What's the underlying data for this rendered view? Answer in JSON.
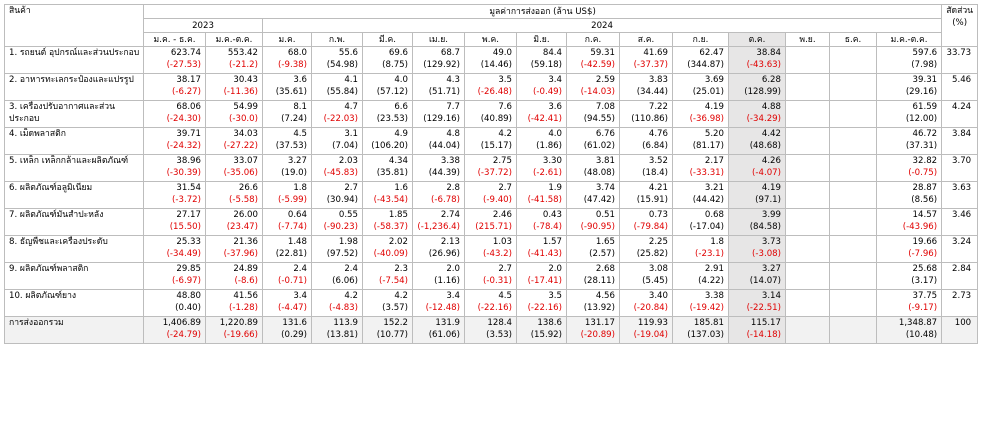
{
  "header": {
    "product": "สินค้า",
    "value_title": "มูลค่าการส่งออก (ล้าน US$)",
    "share_title": "สัดส่วน",
    "share_unit": "(%)",
    "year_2023": "2023",
    "year_2024": "2024",
    "cols_2023": [
      "ม.ค. - ธ.ค.",
      "ม.ค.-ต.ค."
    ],
    "cols_2024": [
      "ม.ค.",
      "ก.พ.",
      "มี.ค.",
      "เม.ย.",
      "พ.ค.",
      "มิ.ย.",
      "ก.ค.",
      "ส.ค.",
      "ก.ย.",
      "ต.ค.",
      "พ.ย.",
      "ธ.ค.",
      "ม.ค.-ต.ค."
    ]
  },
  "rows": [
    {
      "name": "1. รถยนต์ อุปกรณ์และส่วนประกอบ",
      "share": "33.73",
      "cells": [
        {
          "v": "623.74",
          "g": "(-27.53)",
          "neg": true
        },
        {
          "v": "553.42",
          "g": "(-21.2)",
          "neg": true
        },
        {
          "v": "68.0",
          "g": "(-9.38)",
          "neg": true
        },
        {
          "v": "55.6",
          "g": "(54.98)",
          "neg": false
        },
        {
          "v": "69.6",
          "g": "(8.75)",
          "neg": false
        },
        {
          "v": "68.7",
          "g": "(129.92)",
          "neg": false
        },
        {
          "v": "49.0",
          "g": "(14.46)",
          "neg": false
        },
        {
          "v": "84.4",
          "g": "(59.18)",
          "neg": false
        },
        {
          "v": "59.31",
          "g": "(-42.59)",
          "neg": true
        },
        {
          "v": "41.69",
          "g": "(-37.37)",
          "neg": true
        },
        {
          "v": "62.47",
          "g": "(344.87)",
          "neg": false
        },
        {
          "v": "38.84",
          "g": "(-43.63)",
          "neg": true
        },
        {
          "v": "",
          "g": "",
          "neg": false
        },
        {
          "v": "",
          "g": "",
          "neg": false
        },
        {
          "v": "597.6",
          "g": "(7.98)",
          "neg": false
        }
      ]
    },
    {
      "name": "2. อาหารทะเลกระป๋องและแปรรูป",
      "share": "5.46",
      "cells": [
        {
          "v": "38.17",
          "g": "(-6.27)",
          "neg": true
        },
        {
          "v": "30.43",
          "g": "(-11.36)",
          "neg": true
        },
        {
          "v": "3.6",
          "g": "(35.61)",
          "neg": false
        },
        {
          "v": "4.1",
          "g": "(55.84)",
          "neg": false
        },
        {
          "v": "4.0",
          "g": "(57.12)",
          "neg": false
        },
        {
          "v": "4.3",
          "g": "(51.71)",
          "neg": false
        },
        {
          "v": "3.5",
          "g": "(-26.48)",
          "neg": true
        },
        {
          "v": "3.4",
          "g": "(-0.49)",
          "neg": true
        },
        {
          "v": "2.59",
          "g": "(-14.03)",
          "neg": true
        },
        {
          "v": "3.83",
          "g": "(34.44)",
          "neg": false
        },
        {
          "v": "3.69",
          "g": "(25.01)",
          "neg": false
        },
        {
          "v": "6.28",
          "g": "(128.99)",
          "neg": false
        },
        {
          "v": "",
          "g": "",
          "neg": false
        },
        {
          "v": "",
          "g": "",
          "neg": false
        },
        {
          "v": "39.31",
          "g": "(29.16)",
          "neg": false
        }
      ]
    },
    {
      "name": "3. เครื่องปรับอากาศและส่วนประกอบ",
      "share": "4.24",
      "cells": [
        {
          "v": "68.06",
          "g": "(-24.30)",
          "neg": true
        },
        {
          "v": "54.99",
          "g": "(-30.0)",
          "neg": true
        },
        {
          "v": "8.1",
          "g": "(7.24)",
          "neg": false
        },
        {
          "v": "4.7",
          "g": "(-22.03)",
          "neg": true
        },
        {
          "v": "6.6",
          "g": "(23.53)",
          "neg": false
        },
        {
          "v": "7.7",
          "g": "(129.16)",
          "neg": false
        },
        {
          "v": "7.6",
          "g": "(40.89)",
          "neg": false
        },
        {
          "v": "3.6",
          "g": "(-42.41)",
          "neg": true
        },
        {
          "v": "7.08",
          "g": "(94.55)",
          "neg": false
        },
        {
          "v": "7.22",
          "g": "(110.86)",
          "neg": false
        },
        {
          "v": "4.19",
          "g": "(-36.98)",
          "neg": true
        },
        {
          "v": "4.88",
          "g": "(-34.29)",
          "neg": true
        },
        {
          "v": "",
          "g": "",
          "neg": false
        },
        {
          "v": "",
          "g": "",
          "neg": false
        },
        {
          "v": "61.59",
          "g": "(12.00)",
          "neg": false
        }
      ]
    },
    {
      "name": "4. เม็ดพลาสติก",
      "share": "3.84",
      "cells": [
        {
          "v": "39.71",
          "g": "(-24.32)",
          "neg": true
        },
        {
          "v": "34.03",
          "g": "(-27.22)",
          "neg": true
        },
        {
          "v": "4.5",
          "g": "(37.53)",
          "neg": false
        },
        {
          "v": "3.1",
          "g": "(7.04)",
          "neg": false
        },
        {
          "v": "4.9",
          "g": "(106.20)",
          "neg": false
        },
        {
          "v": "4.8",
          "g": "(44.04)",
          "neg": false
        },
        {
          "v": "4.2",
          "g": "(15.17)",
          "neg": false
        },
        {
          "v": "4.0",
          "g": "(1.86)",
          "neg": false
        },
        {
          "v": "6.76",
          "g": "(61.02)",
          "neg": false
        },
        {
          "v": "4.76",
          "g": "(6.84)",
          "neg": false
        },
        {
          "v": "5.20",
          "g": "(81.17)",
          "neg": false
        },
        {
          "v": "4.42",
          "g": "(48.68)",
          "neg": false
        },
        {
          "v": "",
          "g": "",
          "neg": false
        },
        {
          "v": "",
          "g": "",
          "neg": false
        },
        {
          "v": "46.72",
          "g": "(37.31)",
          "neg": false
        }
      ]
    },
    {
      "name": "5. เหล็ก เหล็กกล้าและผลิตภัณฑ์",
      "share": "3.70",
      "cells": [
        {
          "v": "38.96",
          "g": "(-30.39)",
          "neg": true
        },
        {
          "v": "33.07",
          "g": "(-35.06)",
          "neg": true
        },
        {
          "v": "3.27",
          "g": "(19.0)",
          "neg": false
        },
        {
          "v": "2.03",
          "g": "(-45.83)",
          "neg": true
        },
        {
          "v": "4.34",
          "g": "(35.81)",
          "neg": false
        },
        {
          "v": "3.38",
          "g": "(44.39)",
          "neg": false
        },
        {
          "v": "2.75",
          "g": "(-37.72)",
          "neg": true
        },
        {
          "v": "3.30",
          "g": "(-2.61)",
          "neg": true
        },
        {
          "v": "3.81",
          "g": "(48.08)",
          "neg": false
        },
        {
          "v": "3.52",
          "g": "(18.4)",
          "neg": false
        },
        {
          "v": "2.17",
          "g": "(-33.31)",
          "neg": true
        },
        {
          "v": "4.26",
          "g": "(-4.07)",
          "neg": true
        },
        {
          "v": "",
          "g": "",
          "neg": false
        },
        {
          "v": "",
          "g": "",
          "neg": false
        },
        {
          "v": "32.82",
          "g": "(-0.75)",
          "neg": true
        }
      ]
    },
    {
      "name": "6. ผลิตภัณฑ์อลูมิเนียม",
      "share": "3.63",
      "cells": [
        {
          "v": "31.54",
          "g": "(-3.72)",
          "neg": true
        },
        {
          "v": "26.6",
          "g": "(-5.58)",
          "neg": true
        },
        {
          "v": "1.8",
          "g": "(-5.99)",
          "neg": true
        },
        {
          "v": "2.7",
          "g": "(30.94)",
          "neg": false
        },
        {
          "v": "1.6",
          "g": "(-43.54)",
          "neg": true
        },
        {
          "v": "2.8",
          "g": "(-6.78)",
          "neg": true
        },
        {
          "v": "2.7",
          "g": "(-9.40)",
          "neg": true
        },
        {
          "v": "1.9",
          "g": "(-41.58)",
          "neg": true
        },
        {
          "v": "3.74",
          "g": "(47.42)",
          "neg": false
        },
        {
          "v": "4.21",
          "g": "(15.91)",
          "neg": false
        },
        {
          "v": "3.21",
          "g": "(44.42)",
          "neg": false
        },
        {
          "v": "4.19",
          "g": "(97.1)",
          "neg": false
        },
        {
          "v": "",
          "g": "",
          "neg": false
        },
        {
          "v": "",
          "g": "",
          "neg": false
        },
        {
          "v": "28.87",
          "g": "(8.56)",
          "neg": false
        }
      ]
    },
    {
      "name": "7. ผลิตภัณฑ์มันสำปะหลัง",
      "share": "3.46",
      "cells": [
        {
          "v": "27.17",
          "g": "(15.50)",
          "neg": true
        },
        {
          "v": "26.00",
          "g": "(23.47)",
          "neg": true
        },
        {
          "v": "0.64",
          "g": "(-7.74)",
          "neg": true
        },
        {
          "v": "0.55",
          "g": "(-90.23)",
          "neg": true
        },
        {
          "v": "1.85",
          "g": "(-58.37)",
          "neg": true
        },
        {
          "v": "2.74",
          "g": "(-1,236.4)",
          "neg": true
        },
        {
          "v": "2.46",
          "g": "(215.71)",
          "neg": true
        },
        {
          "v": "0.43",
          "g": "(-78.4)",
          "neg": true
        },
        {
          "v": "0.51",
          "g": "(-90.95)",
          "neg": true
        },
        {
          "v": "0.73",
          "g": "(-79.84)",
          "neg": true
        },
        {
          "v": "0.68",
          "g": "(-17.04)",
          "neg": false
        },
        {
          "v": "3.99",
          "g": "(84.58)",
          "neg": false
        },
        {
          "v": "",
          "g": "",
          "neg": false
        },
        {
          "v": "",
          "g": "",
          "neg": false
        },
        {
          "v": "14.57",
          "g": "(-43.96)",
          "neg": true
        }
      ]
    },
    {
      "name": "8. ธัญพืชและเครื่องประดับ",
      "share": "3.24",
      "cells": [
        {
          "v": "25.33",
          "g": "(-34.49)",
          "neg": true
        },
        {
          "v": "21.36",
          "g": "(-37.96)",
          "neg": true
        },
        {
          "v": "1.48",
          "g": "(22.81)",
          "neg": false
        },
        {
          "v": "1.98",
          "g": "(97.52)",
          "neg": false
        },
        {
          "v": "2.02",
          "g": "(-40.09)",
          "neg": true
        },
        {
          "v": "2.13",
          "g": "(26.96)",
          "neg": false
        },
        {
          "v": "1.03",
          "g": "(-43.2)",
          "neg": true
        },
        {
          "v": "1.57",
          "g": "(-41.43)",
          "neg": true
        },
        {
          "v": "1.65",
          "g": "(2.57)",
          "neg": false
        },
        {
          "v": "2.25",
          "g": "(25.82)",
          "neg": false
        },
        {
          "v": "1.8",
          "g": "(-23.1)",
          "neg": true
        },
        {
          "v": "3.73",
          "g": "(-3.08)",
          "neg": true
        },
        {
          "v": "",
          "g": "",
          "neg": false
        },
        {
          "v": "",
          "g": "",
          "neg": false
        },
        {
          "v": "19.66",
          "g": "(-7.96)",
          "neg": true
        }
      ]
    },
    {
      "name": "9. ผลิตภัณฑ์พลาสติก",
      "share": "2.84",
      "cells": [
        {
          "v": "29.85",
          "g": "(-6.97)",
          "neg": true
        },
        {
          "v": "24.89",
          "g": "(-8.6)",
          "neg": true
        },
        {
          "v": "2.4",
          "g": "(-0.71)",
          "neg": true
        },
        {
          "v": "2.4",
          "g": "(6.06)",
          "neg": false
        },
        {
          "v": "2.3",
          "g": "(-7.54)",
          "neg": true
        },
        {
          "v": "2.0",
          "g": "(1.16)",
          "neg": false
        },
        {
          "v": "2.7",
          "g": "(-0.31)",
          "neg": true
        },
        {
          "v": "2.0",
          "g": "(-17.41)",
          "neg": true
        },
        {
          "v": "2.68",
          "g": "(28.11)",
          "neg": false
        },
        {
          "v": "3.08",
          "g": "(5.45)",
          "neg": false
        },
        {
          "v": "2.91",
          "g": "(4.22)",
          "neg": false
        },
        {
          "v": "3.27",
          "g": "(14.07)",
          "neg": false
        },
        {
          "v": "",
          "g": "",
          "neg": false
        },
        {
          "v": "",
          "g": "",
          "neg": false
        },
        {
          "v": "25.68",
          "g": "(3.17)",
          "neg": false
        }
      ]
    },
    {
      "name": "10. ผลิตภัณฑ์ยาง",
      "share": "2.73",
      "cells": [
        {
          "v": "48.80",
          "g": "(0.40)",
          "neg": false
        },
        {
          "v": "41.56",
          "g": "(-1.28)",
          "neg": true
        },
        {
          "v": "3.4",
          "g": "(-4.47)",
          "neg": true
        },
        {
          "v": "4.2",
          "g": "(-4.83)",
          "neg": true
        },
        {
          "v": "4.2",
          "g": "(3.57)",
          "neg": false
        },
        {
          "v": "3.4",
          "g": "(-12.48)",
          "neg": true
        },
        {
          "v": "4.5",
          "g": "(-22.16)",
          "neg": true
        },
        {
          "v": "3.5",
          "g": "(-22.16)",
          "neg": true
        },
        {
          "v": "4.56",
          "g": "(13.92)",
          "neg": false
        },
        {
          "v": "3.40",
          "g": "(-20.84)",
          "neg": true
        },
        {
          "v": "3.38",
          "g": "(-19.42)",
          "neg": true
        },
        {
          "v": "3.14",
          "g": "(-22.51)",
          "neg": true
        },
        {
          "v": "",
          "g": "",
          "neg": false
        },
        {
          "v": "",
          "g": "",
          "neg": false
        },
        {
          "v": "37.75",
          "g": "(-9.17)",
          "neg": true
        }
      ]
    }
  ],
  "total": {
    "name": "การส่งออกรวม",
    "share": "100",
    "cells": [
      {
        "v": "1,406.89",
        "g": "(-24.79)",
        "neg": true
      },
      {
        "v": "1,220.89",
        "g": "(-19.66)",
        "neg": true
      },
      {
        "v": "131.6",
        "g": "(0.29)",
        "neg": false
      },
      {
        "v": "113.9",
        "g": "(13.81)",
        "neg": false
      },
      {
        "v": "152.2",
        "g": "(10.77)",
        "neg": false
      },
      {
        "v": "131.9",
        "g": "(61.06)",
        "neg": false
      },
      {
        "v": "128.4",
        "g": "(3.53)",
        "neg": false
      },
      {
        "v": "138.6",
        "g": "(15.92)",
        "neg": false
      },
      {
        "v": "131.17",
        "g": "(-20.89)",
        "neg": true
      },
      {
        "v": "119.93",
        "g": "(-19.04)",
        "neg": true
      },
      {
        "v": "185.81",
        "g": "(137.03)",
        "neg": false
      },
      {
        "v": "115.17",
        "g": "(-14.18)",
        "neg": true
      },
      {
        "v": "",
        "g": "",
        "neg": false
      },
      {
        "v": "",
        "g": "",
        "neg": false
      },
      {
        "v": "1,348.87",
        "g": "(10.48)",
        "neg": false
      }
    ]
  },
  "colors": {
    "negative": "#e00000",
    "highlight": "#e7e6e6",
    "border": "#bdbdbd"
  }
}
